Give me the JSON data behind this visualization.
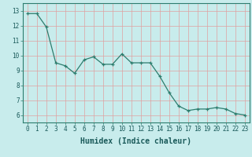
{
  "xlabel": "Humidex (Indice chaleur)",
  "x": [
    0,
    1,
    2,
    3,
    4,
    5,
    6,
    7,
    8,
    9,
    10,
    11,
    12,
    13,
    14,
    15,
    16,
    17,
    18,
    19,
    20,
    21,
    22,
    23
  ],
  "y": [
    12.8,
    12.8,
    11.9,
    9.5,
    9.3,
    8.8,
    9.7,
    9.9,
    9.4,
    9.4,
    10.1,
    9.5,
    9.5,
    9.5,
    8.6,
    7.5,
    6.6,
    6.3,
    6.4,
    6.4,
    6.5,
    6.4,
    6.1,
    6.0
  ],
  "line_color": "#2d7d6e",
  "marker": "+",
  "bg_color": "#c8ecec",
  "grid_color_x": "#e0a0a0",
  "grid_color_y": "#e0a0a0",
  "tick_label_fontsize": 5.5,
  "xlabel_fontsize": 7,
  "ylim": [
    5.5,
    13.5
  ],
  "xlim": [
    -0.5,
    23.5
  ],
  "yticks": [
    6,
    7,
    8,
    9,
    10,
    11,
    12,
    13
  ],
  "xticks": [
    0,
    1,
    2,
    3,
    4,
    5,
    6,
    7,
    8,
    9,
    10,
    11,
    12,
    13,
    14,
    15,
    16,
    17,
    18,
    19,
    20,
    21,
    22,
    23
  ]
}
